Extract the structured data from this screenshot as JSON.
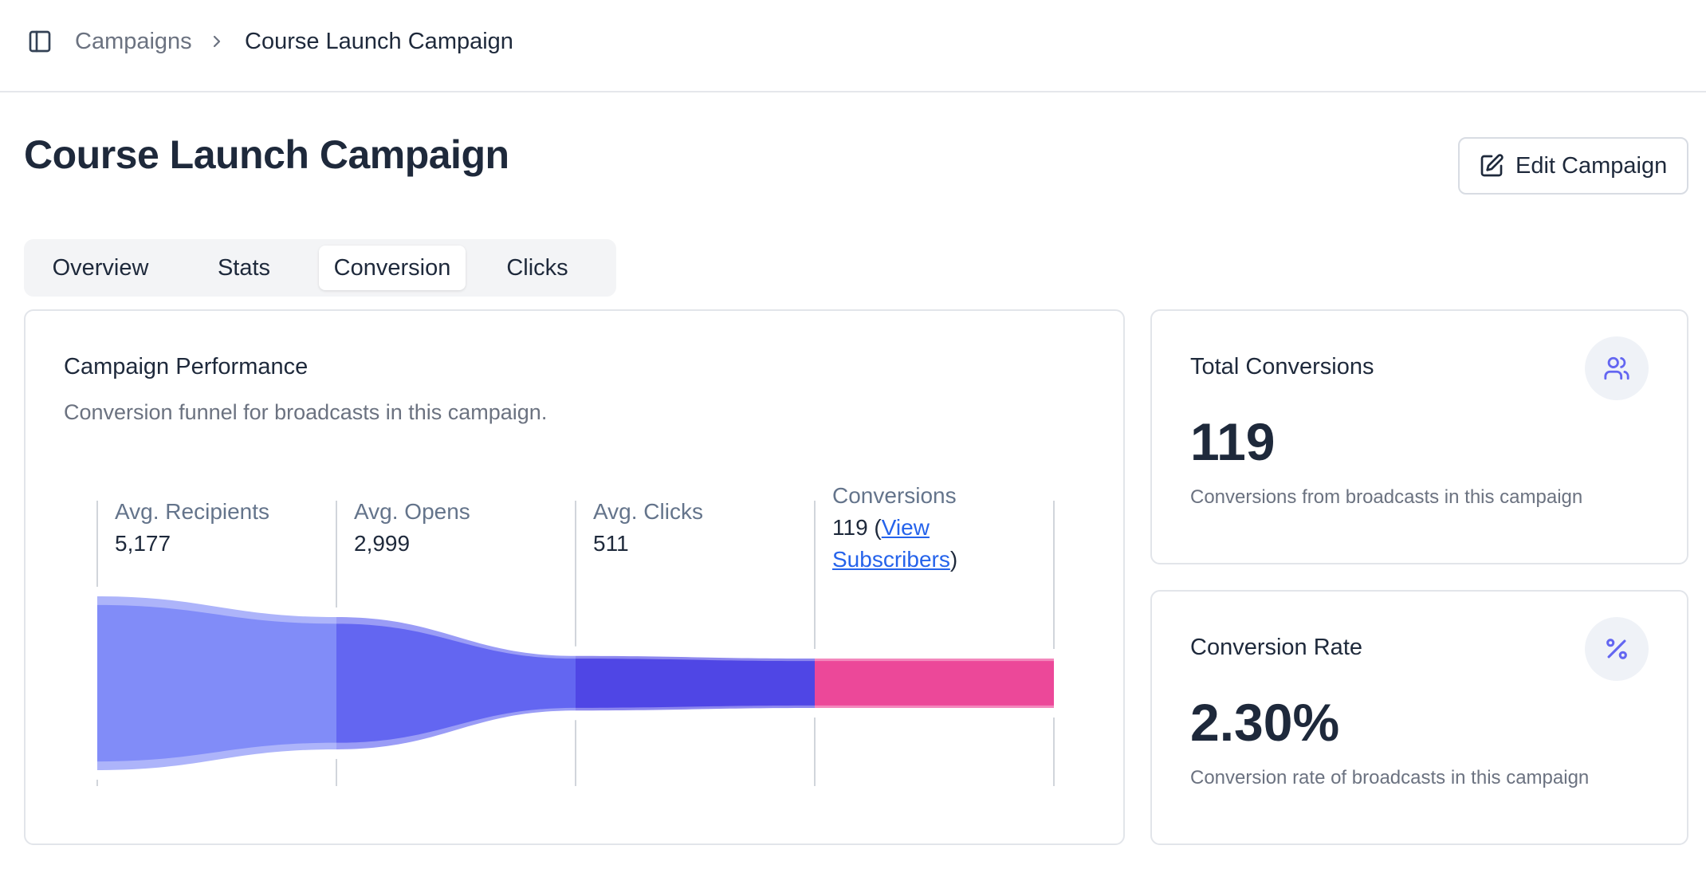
{
  "breadcrumb": {
    "parent": "Campaigns",
    "current": "Course Launch Campaign"
  },
  "page": {
    "title": "Course Launch Campaign",
    "edit_label": "Edit Campaign"
  },
  "tabs": [
    {
      "label": "Overview",
      "active": false
    },
    {
      "label": "Stats",
      "active": false
    },
    {
      "label": "Conversion",
      "active": true
    },
    {
      "label": "Clicks",
      "active": false
    }
  ],
  "performance": {
    "title": "Campaign Performance",
    "subtitle": "Conversion funnel for broadcasts in this campaign."
  },
  "chart_data": {
    "type": "funnel",
    "stages": [
      {
        "label": "Avg. Recipients",
        "value": 5177,
        "display": "5,177",
        "color": "#818cf8"
      },
      {
        "label": "Avg. Opens",
        "value": 2999,
        "display": "2,999",
        "color": "#6366f1"
      },
      {
        "label": "Avg. Clicks",
        "value": 511,
        "display": "511",
        "color": "#4f46e5"
      },
      {
        "label": "Conversions",
        "value": 119,
        "display": "119",
        "color": "#ec4899",
        "link_text": "View Subscribers"
      }
    ]
  },
  "stats": {
    "total_conversions": {
      "title": "Total Conversions",
      "value": "119",
      "description": "Conversions from broadcasts in this campaign",
      "icon": "users-icon"
    },
    "conversion_rate": {
      "title": "Conversion Rate",
      "value": "2.30%",
      "description": "Conversion rate of broadcasts in this campaign",
      "icon": "percent-icon"
    }
  },
  "colors": {
    "accent": "#6366f1",
    "conversion": "#ec4899",
    "link": "#2563eb"
  }
}
